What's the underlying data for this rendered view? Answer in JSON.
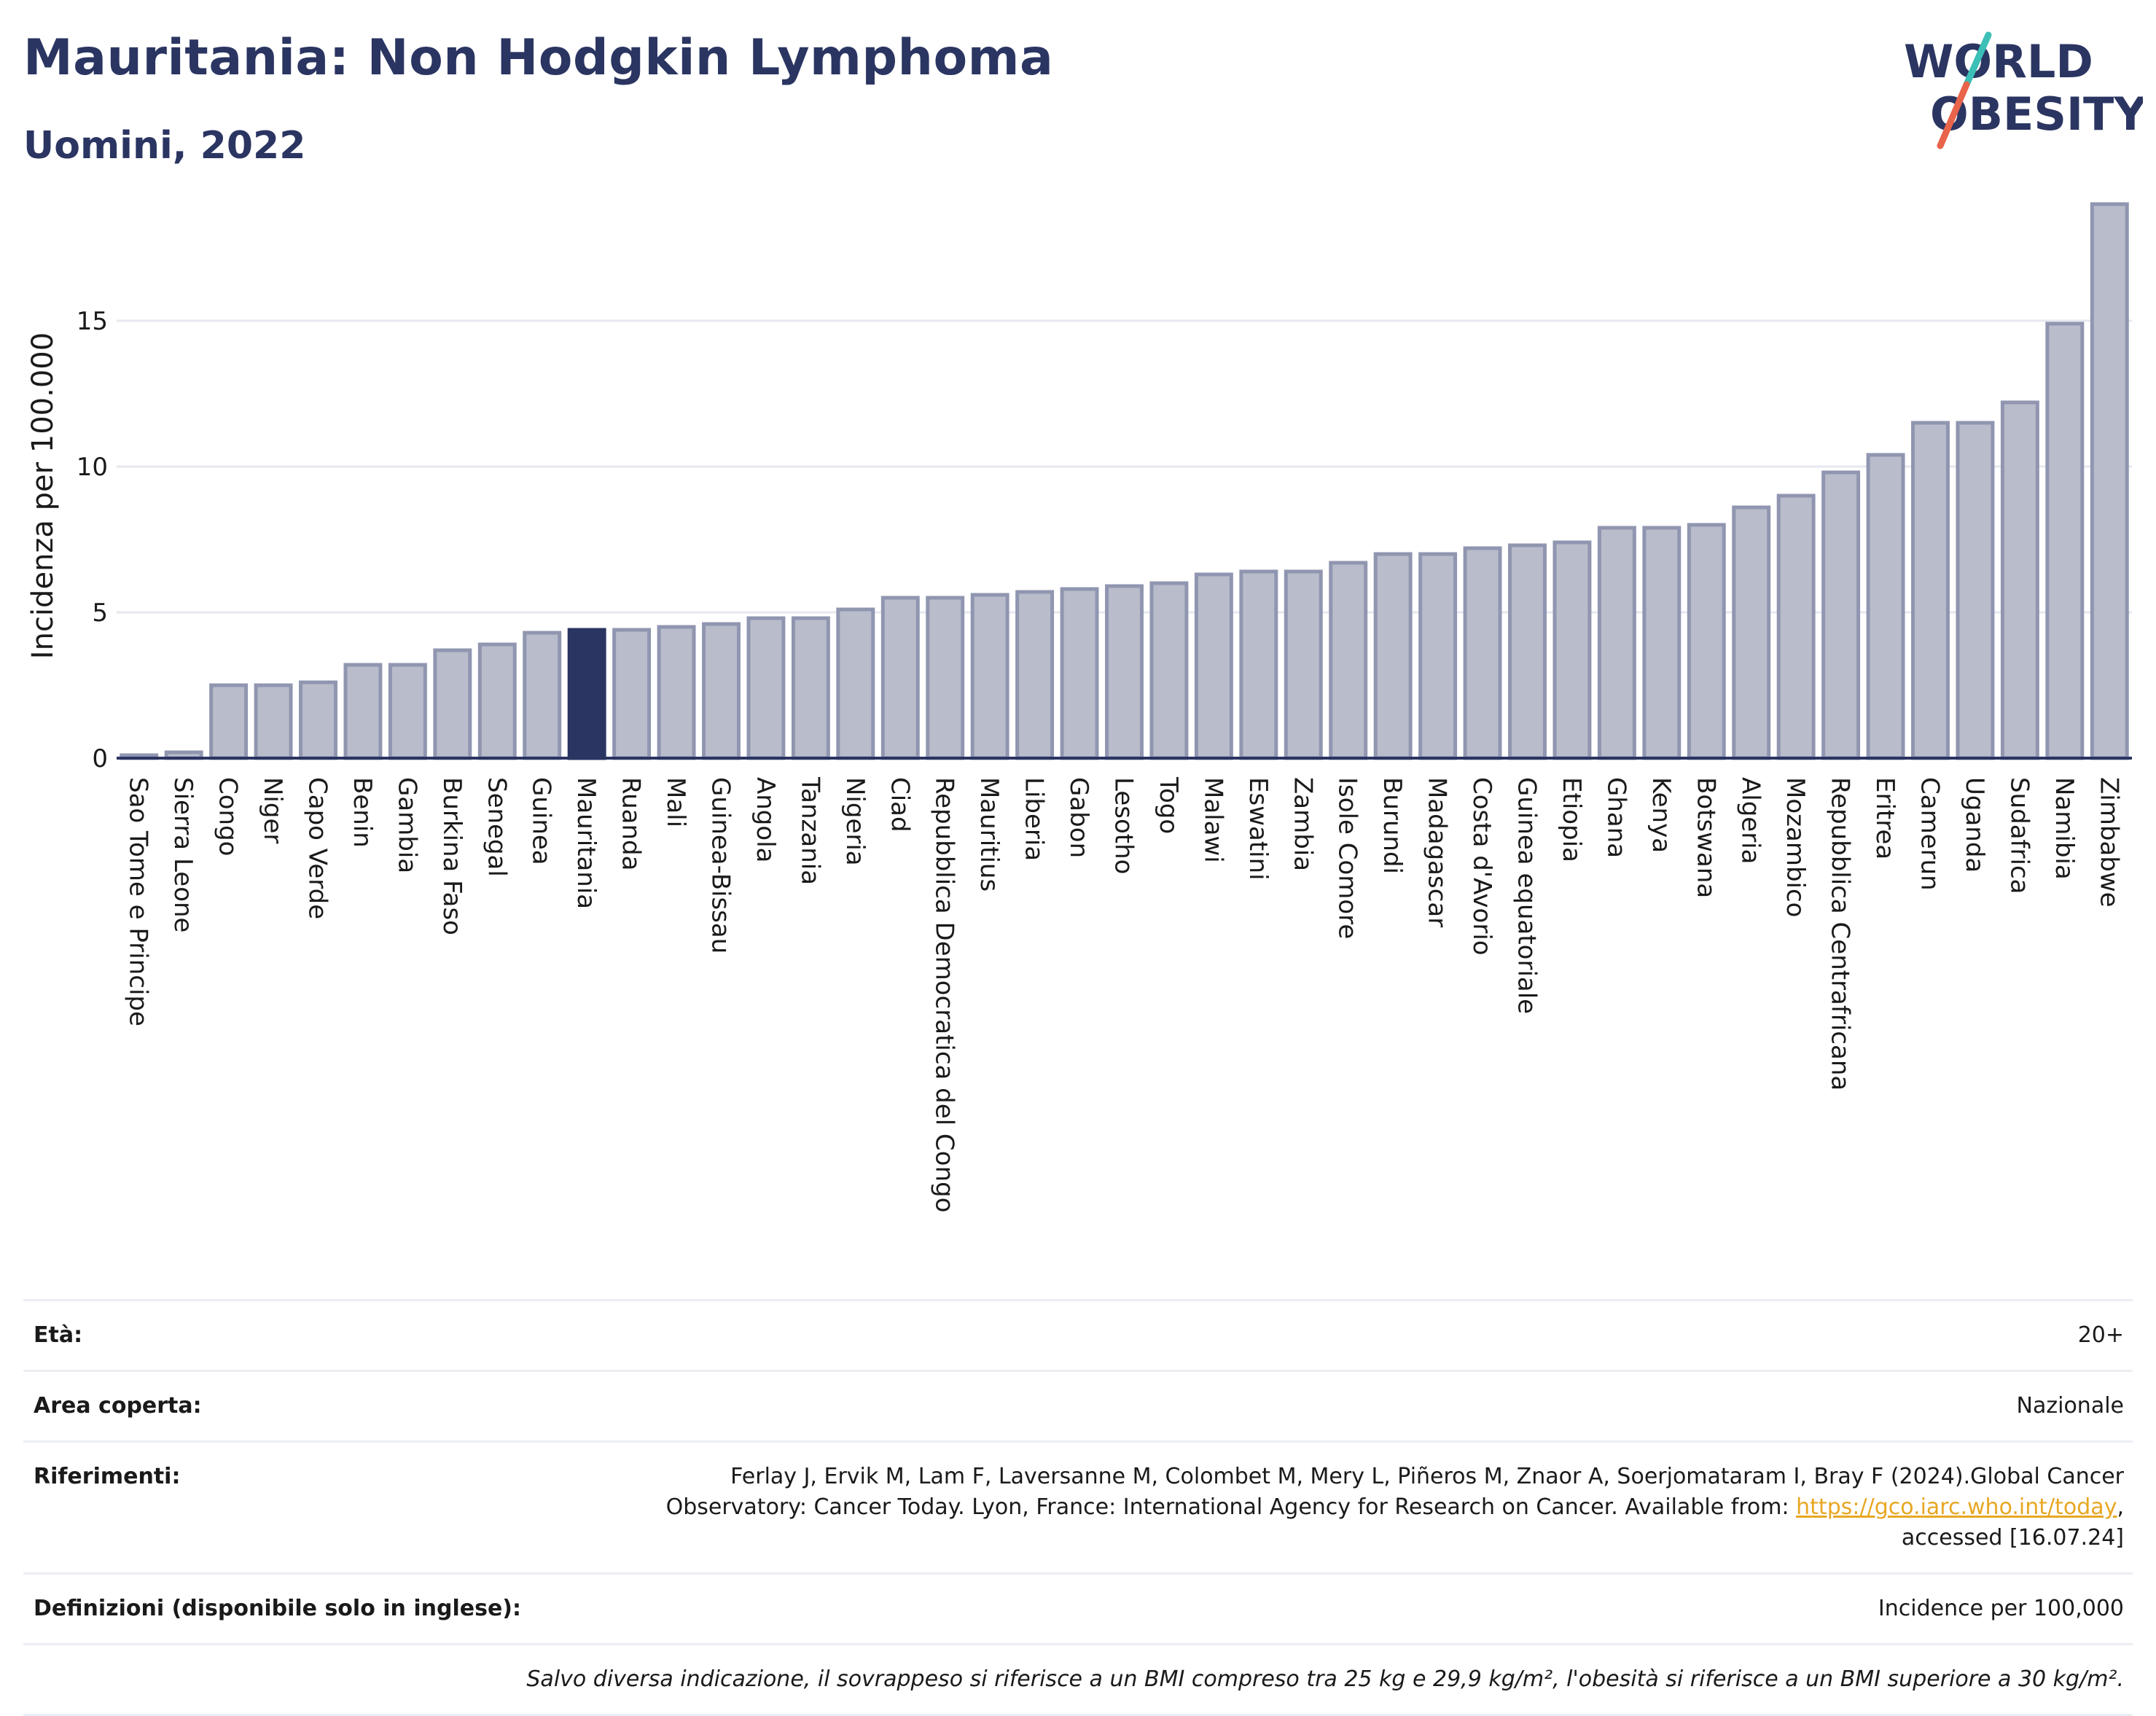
{
  "header": {
    "title": "Mauritania: Non Hodgkin Lymphoma",
    "subtitle": "Uomini, 2022"
  },
  "logo": {
    "line1": "WORLD",
    "line2": "OBESITY",
    "accent_colors": [
      "#3cbfb6",
      "#e8644a"
    ]
  },
  "chart_data": {
    "type": "bar",
    "ylabel": "Incidenza per 100.000",
    "xlabel": "",
    "ylim": [
      0,
      19
    ],
    "yticks": [
      0,
      5,
      10,
      15
    ],
    "grid": true,
    "highlight": "Mauritania",
    "colors": {
      "bar": "#b8bccb",
      "bar_border": "#9096b0",
      "highlight": "#2b3562"
    },
    "categories": [
      "Sao Tome e Principe",
      "Sierra Leone",
      "Congo",
      "Niger",
      "Capo Verde",
      "Benin",
      "Gambia",
      "Burkina Faso",
      "Senegal",
      "Guinea",
      "Mauritania",
      "Ruanda",
      "Mali",
      "Guinea-Bissau",
      "Angola",
      "Tanzania",
      "Nigeria",
      "Ciad",
      "Repubblica Democratica del Congo",
      "Mauritius",
      "Liberia",
      "Gabon",
      "Lesotho",
      "Togo",
      "Malawi",
      "Eswatini",
      "Zambia",
      "Isole Comore",
      "Burundi",
      "Madagascar",
      "Costa d'Avorio",
      "Guinea equatoriale",
      "Etiopia",
      "Ghana",
      "Kenya",
      "Botswana",
      "Algeria",
      "Mozambico",
      "Repubblica Centrafricana",
      "Eritrea",
      "Camerun",
      "Uganda",
      "Sudafrica",
      "Namibia",
      "Zimbabwe"
    ],
    "values": [
      0.1,
      0.2,
      2.5,
      2.5,
      2.6,
      3.2,
      3.2,
      3.7,
      3.9,
      4.3,
      4.4,
      4.4,
      4.5,
      4.6,
      4.8,
      4.8,
      5.1,
      5.5,
      5.5,
      5.6,
      5.7,
      5.8,
      5.9,
      6.0,
      6.3,
      6.4,
      6.4,
      6.7,
      7.0,
      7.0,
      7.2,
      7.3,
      7.4,
      7.9,
      7.9,
      8.0,
      8.6,
      9.0,
      9.8,
      10.4,
      11.5,
      11.5,
      12.2,
      14.9,
      19.0
    ]
  },
  "meta": {
    "age_label": "Età:",
    "age_value": "20+",
    "area_label": "Area coperta:",
    "area_value": "Nazionale",
    "ref_label": "Riferimenti:",
    "ref_line1": "Ferlay J, Ervik M, Lam F, Laversanne M, Colombet M, Mery L, Piñeros M, Znaor A, Soerjomataram I, Bray F (2024).Global Cancer",
    "ref_line2_pre": "Observatory: Cancer Today. Lyon, France: International Agency for Research on Cancer. Available from: ",
    "ref_link": "https://gco.iarc.who.int/today",
    "ref_line2_post": ",",
    "ref_line3": "accessed [16.07.24]",
    "def_label": "Definizioni (disponibile solo in inglese):",
    "def_value": "Incidence per 100,000",
    "note": "Salvo diversa indicazione, il sovrappeso si riferisce a un BMI compreso tra 25 kg e 29,9 kg/m², l'obesità si riferisce a un BMI superiore a 30 kg/m²."
  }
}
